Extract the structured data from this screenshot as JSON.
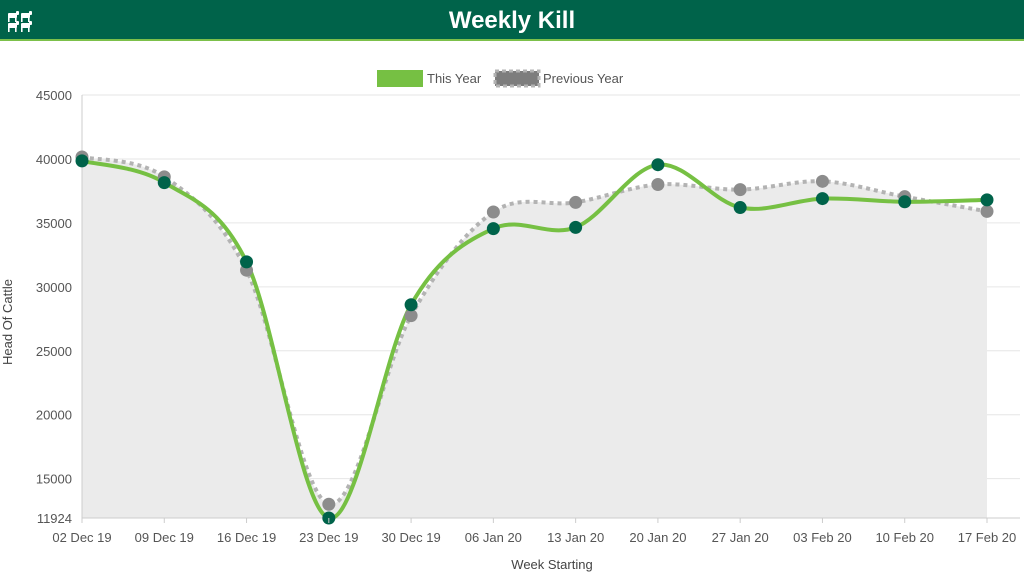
{
  "header": {
    "title": "Weekly Kill",
    "logo_icon": "cattle-herd-icon",
    "background": "#00634a",
    "accent": "#7cc04a"
  },
  "chart_data": {
    "type": "line",
    "title": "Weekly Kill",
    "xlabel": "Week Starting",
    "ylabel": "Head Of Cattle",
    "categories": [
      "02 Dec 19",
      "09 Dec 19",
      "16 Dec 19",
      "23 Dec 19",
      "30 Dec 19",
      "06 Jan 20",
      "13 Jan 20",
      "20 Jan 20",
      "27 Jan 20",
      "03 Feb 20",
      "10 Feb 20",
      "17 Feb 20"
    ],
    "ylim": [
      11924,
      45000
    ],
    "yticks": [
      "11924",
      "15000",
      "20000",
      "25000",
      "30000",
      "35000",
      "40000",
      "45000"
    ],
    "grid": true,
    "legend": "top-center",
    "series": [
      {
        "name": "This Year",
        "color": "#76c043",
        "marker_color": "#00634a",
        "style": "solid",
        "values": [
          39850,
          38150,
          31950,
          11924,
          28600,
          34550,
          34650,
          39550,
          36200,
          36900,
          36650,
          36800
        ]
      },
      {
        "name": "Previous Year",
        "color": "#b3b3b3",
        "marker_color": "#8c8c8c",
        "style": "dotted",
        "values": [
          40150,
          38600,
          31300,
          13000,
          27750,
          35850,
          36600,
          38000,
          37600,
          38250,
          37050,
          35900
        ]
      }
    ]
  }
}
